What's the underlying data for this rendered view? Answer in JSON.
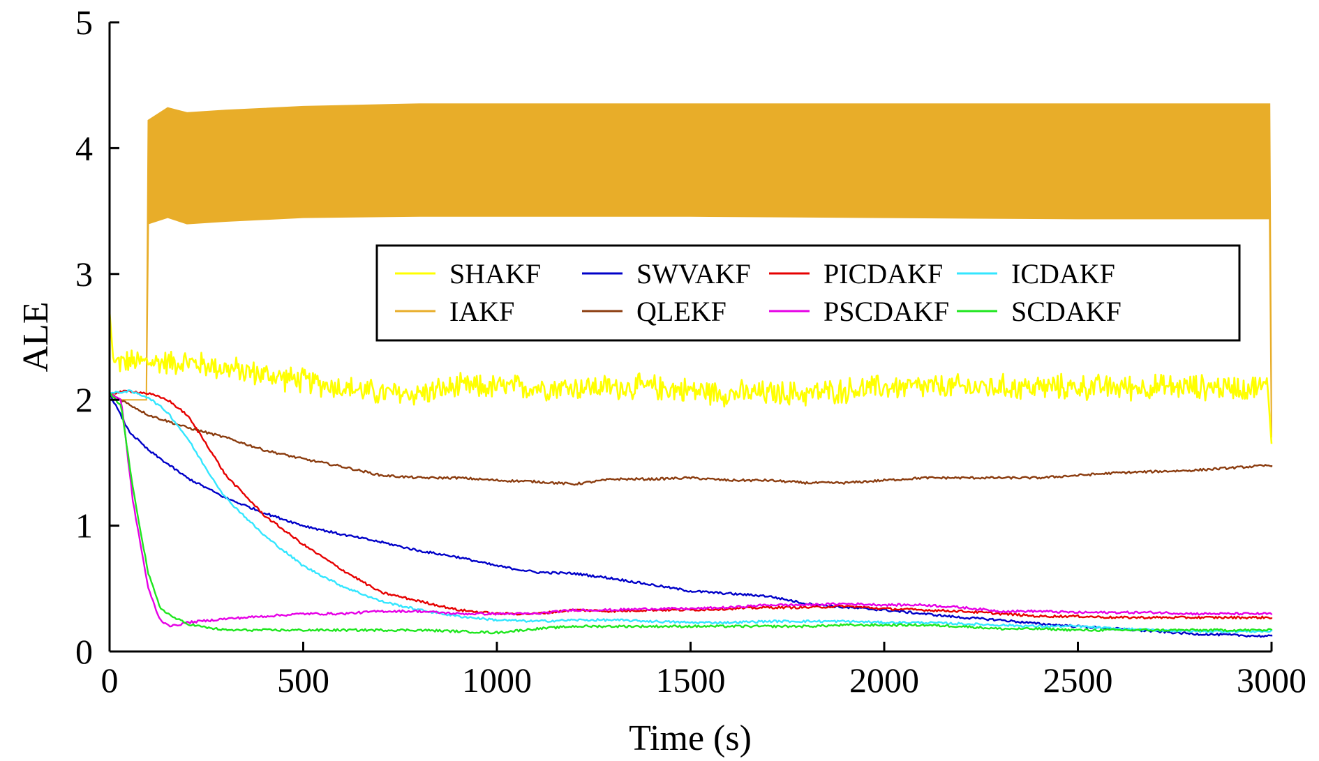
{
  "chart_data": {
    "type": "line",
    "xlabel": "Time (s)",
    "ylabel": "ALE",
    "xlim": [
      0,
      3000
    ],
    "ylim": [
      0,
      5
    ],
    "xticks": [
      0,
      500,
      1000,
      1500,
      2000,
      2500,
      3000
    ],
    "yticks": [
      0,
      1,
      2,
      3,
      4,
      5
    ],
    "grid": false,
    "legend_position": "upper-right",
    "legend_columns": 4,
    "series": [
      {
        "name": "SHAKF",
        "color": "#ffff00",
        "style": "noisy",
        "noise_amplitude": 0.12,
        "x": [
          0,
          10,
          100,
          200,
          300,
          400,
          500,
          600,
          700,
          800,
          900,
          1000,
          1200,
          1400,
          1600,
          1800,
          2000,
          2200,
          2400,
          2600,
          2800,
          2990,
          3000
        ],
        "y": [
          2.7,
          2.3,
          2.3,
          2.3,
          2.25,
          2.2,
          2.15,
          2.1,
          2.05,
          2.05,
          2.1,
          2.1,
          2.1,
          2.1,
          2.05,
          2.05,
          2.1,
          2.1,
          2.1,
          2.1,
          2.1,
          2.1,
          1.65
        ]
      },
      {
        "name": "IAKF",
        "color": "#e8ad29",
        "style": "band",
        "x": [
          0,
          95,
          100,
          150,
          200,
          300,
          500,
          800,
          1500,
          2000,
          2500,
          2995,
          3000
        ],
        "y": [
          2.0,
          2.0,
          3.4,
          3.45,
          3.4,
          3.42,
          3.45,
          3.46,
          3.46,
          3.45,
          3.44,
          3.44,
          1.7
        ],
        "y_upper": [
          2.0,
          2.0,
          4.22,
          4.32,
          4.28,
          4.3,
          4.33,
          4.35,
          4.35,
          4.35,
          4.35,
          4.35,
          1.7
        ]
      },
      {
        "name": "SWVAKF",
        "color": "#0000c8",
        "style": "smooth",
        "x": [
          0,
          50,
          100,
          200,
          300,
          400,
          500,
          600,
          700,
          800,
          900,
          1000,
          1100,
          1200,
          1300,
          1400,
          1500,
          1600,
          1700,
          1800,
          1900,
          2000,
          2100,
          2200,
          2300,
          2400,
          2500,
          2600,
          2700,
          2800,
          2900,
          3000
        ],
        "y": [
          2.05,
          1.75,
          1.6,
          1.38,
          1.22,
          1.1,
          1.0,
          0.93,
          0.87,
          0.8,
          0.75,
          0.68,
          0.63,
          0.62,
          0.58,
          0.53,
          0.48,
          0.46,
          0.44,
          0.38,
          0.35,
          0.33,
          0.3,
          0.27,
          0.25,
          0.22,
          0.2,
          0.18,
          0.16,
          0.14,
          0.13,
          0.12
        ]
      },
      {
        "name": "QLEKF",
        "color": "#8b3c0f",
        "style": "smooth",
        "x": [
          0,
          100,
          200,
          300,
          400,
          500,
          600,
          700,
          800,
          900,
          1000,
          1100,
          1200,
          1300,
          1400,
          1500,
          1600,
          1700,
          1800,
          1900,
          2000,
          2100,
          2200,
          2300,
          2400,
          2500,
          2600,
          2700,
          2800,
          2900,
          3000
        ],
        "y": [
          2.05,
          1.88,
          1.78,
          1.7,
          1.6,
          1.53,
          1.47,
          1.4,
          1.38,
          1.38,
          1.36,
          1.35,
          1.33,
          1.37,
          1.37,
          1.38,
          1.36,
          1.36,
          1.34,
          1.34,
          1.36,
          1.38,
          1.38,
          1.38,
          1.38,
          1.4,
          1.42,
          1.43,
          1.44,
          1.46,
          1.48
        ]
      },
      {
        "name": "PICDAKF",
        "color": "#e60000",
        "style": "smooth",
        "x": [
          0,
          50,
          100,
          150,
          200,
          250,
          300,
          400,
          500,
          600,
          700,
          800,
          900,
          1000,
          1100,
          1200,
          1300,
          1400,
          1500,
          1600,
          1700,
          1800,
          1900,
          2000,
          2100,
          2200,
          2300,
          2400,
          2500,
          2600,
          2700,
          2800,
          2900,
          3000
        ],
        "y": [
          2.05,
          2.07,
          2.05,
          2.0,
          1.88,
          1.65,
          1.4,
          1.08,
          0.85,
          0.65,
          0.47,
          0.4,
          0.33,
          0.3,
          0.3,
          0.33,
          0.32,
          0.33,
          0.33,
          0.34,
          0.35,
          0.35,
          0.36,
          0.34,
          0.33,
          0.32,
          0.3,
          0.28,
          0.28,
          0.27,
          0.27,
          0.27,
          0.27,
          0.27
        ]
      },
      {
        "name": "PSCDAKF",
        "color": "#e600e6",
        "style": "smooth",
        "x": [
          0,
          30,
          60,
          100,
          130,
          160,
          200,
          300,
          400,
          500,
          600,
          700,
          800,
          900,
          1000,
          1100,
          1200,
          1300,
          1400,
          1500,
          1600,
          1700,
          1800,
          1900,
          2000,
          2100,
          2200,
          2300,
          2400,
          2500,
          2600,
          2700,
          2800,
          2900,
          3000
        ],
        "y": [
          2.05,
          2.0,
          1.2,
          0.5,
          0.25,
          0.2,
          0.23,
          0.26,
          0.28,
          0.3,
          0.3,
          0.32,
          0.32,
          0.3,
          0.3,
          0.3,
          0.33,
          0.33,
          0.34,
          0.34,
          0.35,
          0.37,
          0.37,
          0.38,
          0.37,
          0.37,
          0.35,
          0.32,
          0.32,
          0.31,
          0.31,
          0.31,
          0.3,
          0.3,
          0.3
        ]
      },
      {
        "name": "ICDAKF",
        "color": "#33e6ff",
        "style": "smooth",
        "x": [
          0,
          50,
          100,
          150,
          200,
          250,
          300,
          400,
          500,
          600,
          700,
          800,
          900,
          1000,
          1100,
          1200,
          1300,
          1400,
          1500,
          1600,
          1700,
          1800,
          1900,
          2000,
          2100,
          2200,
          2300,
          2400,
          2500,
          2600,
          2700,
          2800,
          2900,
          3000
        ],
        "y": [
          2.05,
          2.07,
          2.02,
          1.9,
          1.7,
          1.45,
          1.22,
          0.92,
          0.68,
          0.52,
          0.4,
          0.33,
          0.28,
          0.25,
          0.24,
          0.25,
          0.25,
          0.24,
          0.23,
          0.23,
          0.24,
          0.24,
          0.24,
          0.23,
          0.23,
          0.22,
          0.21,
          0.2,
          0.2,
          0.18,
          0.17,
          0.16,
          0.16,
          0.16
        ]
      },
      {
        "name": "SCDAKF",
        "color": "#1ee61e",
        "style": "smooth",
        "x": [
          0,
          30,
          60,
          100,
          130,
          160,
          200,
          250,
          300,
          400,
          500,
          600,
          700,
          800,
          900,
          1000,
          1100,
          1200,
          1300,
          1400,
          1500,
          1600,
          1700,
          1800,
          1900,
          2000,
          2100,
          2200,
          2300,
          2400,
          2500,
          2600,
          2700,
          2800,
          2900,
          3000
        ],
        "y": [
          2.05,
          1.95,
          1.3,
          0.62,
          0.35,
          0.28,
          0.22,
          0.19,
          0.17,
          0.17,
          0.17,
          0.17,
          0.17,
          0.17,
          0.16,
          0.15,
          0.18,
          0.2,
          0.2,
          0.2,
          0.2,
          0.2,
          0.2,
          0.2,
          0.21,
          0.21,
          0.21,
          0.2,
          0.18,
          0.18,
          0.17,
          0.17,
          0.17,
          0.17,
          0.17,
          0.17
        ]
      }
    ]
  }
}
